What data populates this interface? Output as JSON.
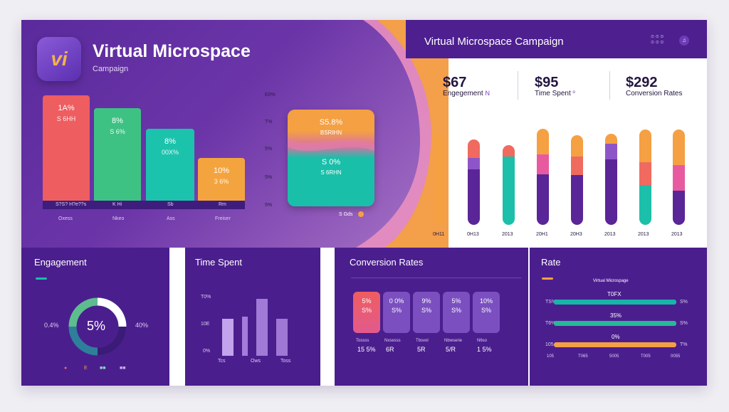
{
  "hero": {
    "logo_text": "vi",
    "title": "Virtual Microspace",
    "subtitle": "Campaign",
    "bars": [
      {
        "v1": "1A%",
        "v2": "S 6HH",
        "color": "#ee5d60",
        "x_label": "Oxess",
        "base_label": "S?S? H?e??s"
      },
      {
        "v1": "8%",
        "v2": "S 6%",
        "color": "#3dc283",
        "x_label": "Nkeo",
        "base_label": "K Hi"
      },
      {
        "v1": "8%",
        "v2": "00X%",
        "color": "#1cc3ac",
        "x_label": "Ass",
        "base_label": "Sb"
      },
      {
        "v1": "10%",
        "v2": "3 6%",
        "color": "#f4a43e",
        "x_label": "Freiser",
        "base_label": "Rm"
      }
    ],
    "y_labels": [
      "E0%",
      "T%",
      "5%",
      "5%",
      "5%"
    ],
    "card": {
      "t1": "S5.8%",
      "t2": "BSRIHN",
      "t3": "S 0%",
      "t4": "S 6RHN",
      "foot": "S Gds"
    }
  },
  "header": {
    "title": "Virtual Microspace Campaign",
    "links": [
      "⊙ ⊙ ⊙",
      "⊙ ⊙ ⊙"
    ],
    "icon": "sound-icon"
  },
  "stats": [
    {
      "value": "$67",
      "label": "Engegement",
      "extra": "N"
    },
    {
      "value": "$95",
      "label": "Time Spent",
      "extra": "º"
    },
    {
      "value": "$292",
      "label": "Conversion Rates",
      "extra": ""
    }
  ],
  "pills_chart": {
    "x_labels": [
      "0H11",
      "0H13",
      "2013",
      "20H1",
      "20H3",
      "2013",
      "2013",
      "2013"
    ]
  },
  "panels": {
    "engagement": {
      "title": "Engagement",
      "center": "5%",
      "left_label": "0.4%",
      "right_label": "40%",
      "legend": [
        "●",
        "E",
        "■■",
        "■■"
      ]
    },
    "time_spent": {
      "title": "Time Spent",
      "y_labels": [
        "T0%",
        "10E",
        "0%"
      ],
      "x_labels": [
        "Tcs",
        "Ows",
        "Toss"
      ]
    },
    "conversion": {
      "title": "Conversion Rates",
      "boxes": [
        {
          "top": "5%",
          "bottom": "S%",
          "value": "15 5%",
          "sub": "Tossss"
        },
        {
          "top": "0 0%",
          "bottom": "S%",
          "value": "6R",
          "sub": "Nxsesss"
        },
        {
          "top": "9%",
          "bottom": "S%",
          "value": "5R",
          "sub": "Tbsvol"
        },
        {
          "top": "5%",
          "bottom": "S%",
          "value": "5/R",
          "sub": "Nbwserie"
        },
        {
          "top": "10%",
          "bottom": "S%",
          "value": "1 5%",
          "sub": "N6so"
        }
      ]
    },
    "rate": {
      "title": "Rate",
      "header": "Virtual Microspage",
      "rows": [
        {
          "head": "T0FX",
          "left": "TS%",
          "right": "S%",
          "color": "#16b5a6",
          "fill": 1.0
        },
        {
          "head": "35%",
          "left": "T6%",
          "right": "S%",
          "color": "#25b995",
          "fill": 1.0
        },
        {
          "head": "0%",
          "left": "105",
          "right": "T%",
          "color": "#f4a043",
          "fill": 1.0
        }
      ],
      "x_labels": [
        "105",
        "T065",
        "5005",
        "T005",
        "0055"
      ]
    }
  }
}
